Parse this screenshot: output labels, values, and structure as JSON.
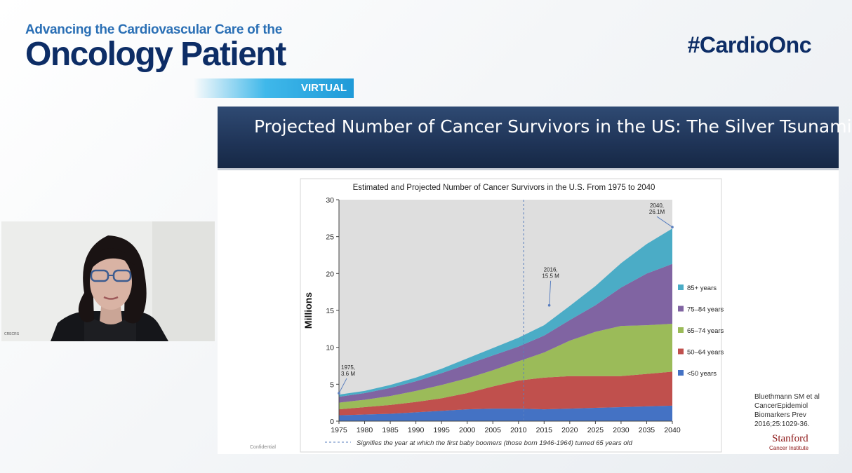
{
  "event": {
    "title_line1": "Advancing the Cardiovascular Care of the",
    "title_line2": "Oncology Patient",
    "ribbon": "VIRTUAL",
    "hashtag": "#CardioOnc"
  },
  "video": {
    "caption": "CRECRS"
  },
  "slide": {
    "title": "Projected Number of Cancer Survivors in the US: The Silver Tsunami",
    "confidential": "Confidential",
    "citation": [
      "Bluethmann SM et al",
      "CancerEpidemiol",
      "Biomarkers Prev",
      "2016;25:1029-36."
    ],
    "logo_name": "Stanford",
    "logo_sub": "Cancer Institute"
  },
  "chart_data": {
    "type": "area",
    "stacked": true,
    "title": "Estimated and Projected Number of Cancer Survivors in the U.S. From 1975 to 2040",
    "xlabel": "",
    "ylabel": "Millions",
    "xlim": [
      1975,
      2040
    ],
    "ylim": [
      0,
      30
    ],
    "grid": false,
    "legend_position": "right",
    "x": [
      1975,
      1980,
      1985,
      1990,
      1995,
      2000,
      2005,
      2010,
      2015,
      2020,
      2025,
      2030,
      2035,
      2040
    ],
    "x_ticks": [
      "1975",
      "1980",
      "1985",
      "1990",
      "1995",
      "2000",
      "2005",
      "2010",
      "2015",
      "2020",
      "2025",
      "2030",
      "2035",
      "2040"
    ],
    "y_ticks": [
      "0",
      "5",
      "10",
      "15",
      "20",
      "25",
      "30"
    ],
    "series": [
      {
        "name": "<50 years",
        "color": "#4472c4",
        "values": [
          0.8,
          0.9,
          1.0,
          1.2,
          1.4,
          1.6,
          1.7,
          1.7,
          1.6,
          1.7,
          1.8,
          1.9,
          2.0,
          2.1
        ]
      },
      {
        "name": "50–64 years",
        "color": "#c0504d",
        "values": [
          0.8,
          1.0,
          1.2,
          1.4,
          1.7,
          2.2,
          3.0,
          3.8,
          4.3,
          4.4,
          4.3,
          4.2,
          4.4,
          4.6
        ]
      },
      {
        "name": "65–74 years",
        "color": "#9bbb59",
        "values": [
          0.9,
          1.0,
          1.2,
          1.5,
          1.8,
          2.0,
          2.2,
          2.6,
          3.4,
          4.8,
          6.0,
          6.8,
          6.6,
          6.5
        ]
      },
      {
        "name": "75–84 years",
        "color": "#8064a2",
        "values": [
          0.8,
          0.9,
          1.1,
          1.3,
          1.6,
          1.9,
          2.0,
          2.0,
          2.3,
          2.8,
          3.6,
          5.2,
          7.0,
          8.1
        ]
      },
      {
        "name": "85+ years",
        "color": "#4bacc6",
        "values": [
          0.3,
          0.3,
          0.4,
          0.5,
          0.6,
          0.8,
          1.0,
          1.2,
          1.4,
          1.9,
          2.6,
          3.3,
          4.0,
          4.8
        ]
      }
    ],
    "legend_order": [
      "85+ years",
      "75–84 years",
      "65–74 years",
      "50–64 years",
      "<50 years"
    ],
    "reference_line": {
      "x": 2011,
      "style": "dashed"
    },
    "annotations": [
      {
        "x": 1975,
        "y": 3.6,
        "lines": [
          "1975,",
          "3.6 M"
        ]
      },
      {
        "x": 2016,
        "y": 15.5,
        "lines": [
          "2016,",
          "15.5 M"
        ]
      },
      {
        "x": 2040,
        "y": 26.1,
        "lines": [
          "2040,",
          "26.1M"
        ]
      }
    ],
    "footnote": "Signifies the year at which the first baby boomers (those born 1946-1964) turned 65 years old"
  }
}
